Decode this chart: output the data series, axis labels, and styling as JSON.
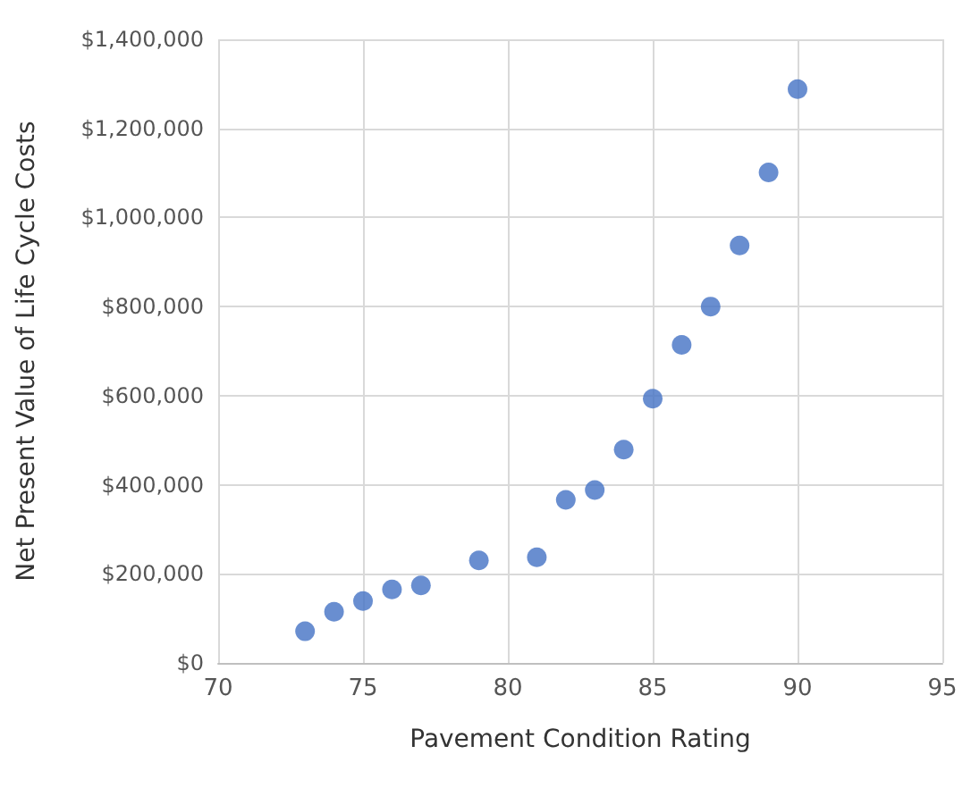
{
  "chart_data": {
    "type": "scatter",
    "xlabel": "Pavement Condition Rating",
    "ylabel": "Net Present Value of Life Cycle Costs",
    "x": [
      73,
      74,
      75,
      76,
      77,
      79,
      81,
      82,
      83,
      84,
      85,
      86,
      87,
      88,
      89,
      90
    ],
    "series": [
      {
        "color": "#4472c4",
        "values": [
          71000,
          115000,
          139000,
          165000,
          174000,
          230000,
          237000,
          366000,
          388000,
          479000,
          593000,
          714000,
          800000,
          937000,
          1101000,
          1288000
        ]
      }
    ],
    "xlim": [
      70,
      95
    ],
    "xticks": [
      70,
      75,
      80,
      85,
      90,
      95
    ],
    "ylim": [
      0,
      1400000
    ],
    "yticks": [
      {
        "value": 0,
        "label": "$0"
      },
      {
        "value": 200000,
        "label": "$200,000"
      },
      {
        "value": 400000,
        "label": "$400,000"
      },
      {
        "value": 600000,
        "label": "$600,000"
      },
      {
        "value": 800000,
        "label": "$800,000"
      },
      {
        "value": 1000000,
        "label": "$1,000,000"
      },
      {
        "value": 1200000,
        "label": "$1,200,000"
      },
      {
        "value": 1400000,
        "label": "$1,400,000"
      }
    ],
    "grid": true,
    "marker": "circle"
  }
}
